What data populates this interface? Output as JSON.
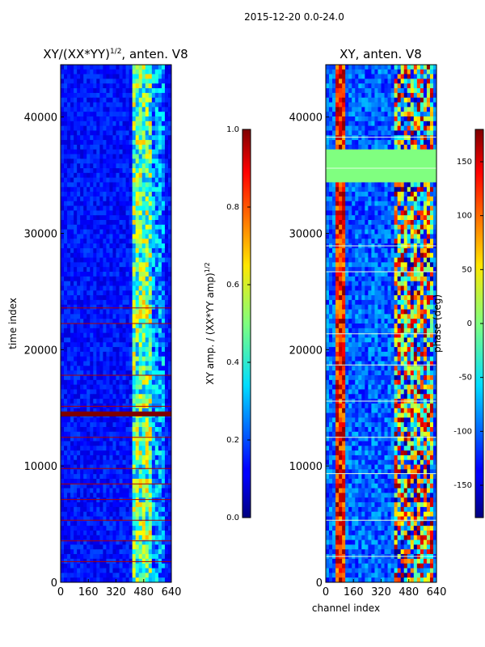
{
  "suptitle": "2015-12-20 0.0-24.0",
  "chart_data": [
    {
      "type": "heatmap",
      "title": "XY/(XX*YY)",
      "title_exponent": "1/2",
      "title_suffix": ", anten. V8",
      "xlabel": "",
      "ylabel": "time index",
      "xlim": [
        0,
        640
      ],
      "ylim": [
        0,
        44500
      ],
      "xticks": [
        "0",
        "160",
        "320",
        "480",
        "640"
      ],
      "yticks": [
        "0",
        "10000",
        "20000",
        "30000",
        "40000"
      ],
      "colorbar": {
        "label": "XY amp. / (XX*YY amp)",
        "label_exponent": "1/2",
        "range": [
          0.0,
          1.0
        ],
        "ticks": [
          "0.0",
          "0.2",
          "0.4",
          "0.6",
          "0.8",
          "1.0"
        ]
      }
    },
    {
      "type": "heatmap",
      "title": "XY, anten. V8",
      "xlabel": "channel index",
      "ylabel": "",
      "xlim": [
        0,
        640
      ],
      "ylim": [
        0,
        44500
      ],
      "xticks": [
        "0",
        "160",
        "320",
        "480",
        "640"
      ],
      "yticks": [
        "0",
        "10000",
        "20000",
        "30000",
        "40000"
      ],
      "colorbar": {
        "label": "phase (deg)",
        "range": [
          -180,
          180
        ],
        "ticks": [
          "-150",
          "-100",
          "-50",
          "0",
          "50",
          "100",
          "150"
        ]
      }
    }
  ],
  "colors": {
    "jet_low": "#00007f",
    "jet_mid": "#7fff7f",
    "jet_high": "#7f0000"
  }
}
